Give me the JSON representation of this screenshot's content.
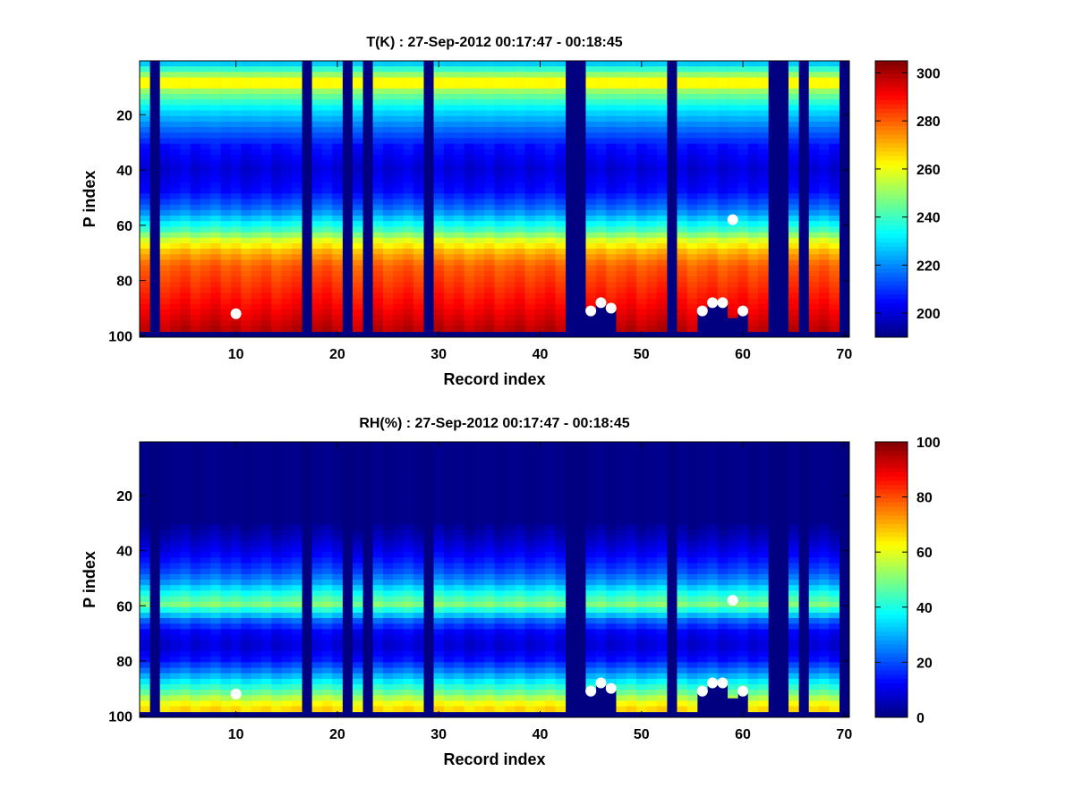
{
  "chart_data": [
    {
      "type": "heatmap",
      "title": "T(K) : 27-Sep-2012 00:17:47 - 00:18:45",
      "xlabel": "Record index",
      "ylabel": "P index",
      "xlim": [
        0.5,
        70.5
      ],
      "ylim": [
        0.5,
        100.5
      ],
      "y_reversed": true,
      "x_ticks": [
        10,
        20,
        30,
        40,
        50,
        60,
        70
      ],
      "y_ticks": [
        20,
        40,
        60,
        80,
        100
      ],
      "colormap": "jet",
      "clim": [
        190,
        305
      ],
      "colorbar_ticks": [
        200,
        220,
        240,
        260,
        280,
        300
      ],
      "missing_records": [
        2,
        17,
        21,
        23,
        29,
        43,
        44,
        53,
        63,
        64,
        66,
        70
      ],
      "profile_mean": [
        {
          "p": 1,
          "v": 222
        },
        {
          "p": 6,
          "v": 250
        },
        {
          "p": 9,
          "v": 268
        },
        {
          "p": 12,
          "v": 250
        },
        {
          "p": 18,
          "v": 232
        },
        {
          "p": 25,
          "v": 218
        },
        {
          "p": 32,
          "v": 206
        },
        {
          "p": 40,
          "v": 200
        },
        {
          "p": 48,
          "v": 205
        },
        {
          "p": 55,
          "v": 218
        },
        {
          "p": 62,
          "v": 240
        },
        {
          "p": 66,
          "v": 258
        },
        {
          "p": 70,
          "v": 270
        },
        {
          "p": 75,
          "v": 280
        },
        {
          "p": 82,
          "v": 285
        },
        {
          "p": 90,
          "v": 291
        },
        {
          "p": 98,
          "v": 298
        }
      ],
      "bottom_p": [
        {
          "record": 45,
          "p": 91
        },
        {
          "record": 46,
          "p": 88
        },
        {
          "record": 47,
          "p": 90
        },
        {
          "record": 48,
          "p": 98
        },
        {
          "record": 49,
          "p": 98
        },
        {
          "record": 50,
          "p": 98
        },
        {
          "record": 51,
          "p": 98
        },
        {
          "record": 52,
          "p": 98
        },
        {
          "record": 56,
          "p": 91
        },
        {
          "record": 57,
          "p": 88
        },
        {
          "record": 58,
          "p": 88
        },
        {
          "record": 59,
          "p": 93
        },
        {
          "record": 60,
          "p": 91
        }
      ],
      "markers": [
        {
          "x": 10,
          "y": 92
        },
        {
          "x": 45,
          "y": 91
        },
        {
          "x": 46,
          "y": 88
        },
        {
          "x": 47,
          "y": 90
        },
        {
          "x": 56,
          "y": 91
        },
        {
          "x": 57,
          "y": 88
        },
        {
          "x": 58,
          "y": 88
        },
        {
          "x": 59,
          "y": 58
        },
        {
          "x": 60,
          "y": 91
        }
      ]
    },
    {
      "type": "heatmap",
      "title": "RH(%) : 27-Sep-2012 00:17:47 - 00:18:45",
      "xlabel": "Record index",
      "ylabel": "P index",
      "xlim": [
        0.5,
        70.5
      ],
      "ylim": [
        0.5,
        100.5
      ],
      "y_reversed": true,
      "x_ticks": [
        10,
        20,
        30,
        40,
        50,
        60,
        70
      ],
      "y_ticks": [
        20,
        40,
        60,
        80,
        100
      ],
      "colormap": "jet",
      "clim": [
        0,
        100
      ],
      "colorbar_ticks": [
        0,
        20,
        40,
        60,
        80,
        100
      ],
      "missing_records": [
        2,
        17,
        21,
        23,
        29,
        43,
        44,
        53,
        63,
        64,
        66,
        70
      ],
      "profile_mean": [
        {
          "p": 1,
          "v": 1
        },
        {
          "p": 30,
          "v": 1
        },
        {
          "p": 36,
          "v": 6
        },
        {
          "p": 42,
          "v": 12
        },
        {
          "p": 48,
          "v": 20
        },
        {
          "p": 52,
          "v": 28
        },
        {
          "p": 56,
          "v": 40
        },
        {
          "p": 60,
          "v": 50
        },
        {
          "p": 63,
          "v": 36
        },
        {
          "p": 66,
          "v": 22
        },
        {
          "p": 70,
          "v": 12
        },
        {
          "p": 75,
          "v": 8
        },
        {
          "p": 80,
          "v": 14
        },
        {
          "p": 84,
          "v": 24
        },
        {
          "p": 88,
          "v": 36
        },
        {
          "p": 92,
          "v": 48
        },
        {
          "p": 96,
          "v": 62
        },
        {
          "p": 98,
          "v": 66
        }
      ],
      "bottom_p": [
        {
          "record": 45,
          "p": 91
        },
        {
          "record": 46,
          "p": 88
        },
        {
          "record": 47,
          "p": 90
        },
        {
          "record": 48,
          "p": 98
        },
        {
          "record": 49,
          "p": 98
        },
        {
          "record": 50,
          "p": 98
        },
        {
          "record": 51,
          "p": 98
        },
        {
          "record": 52,
          "p": 98
        },
        {
          "record": 56,
          "p": 91
        },
        {
          "record": 57,
          "p": 88
        },
        {
          "record": 58,
          "p": 88
        },
        {
          "record": 59,
          "p": 93
        },
        {
          "record": 60,
          "p": 91
        }
      ],
      "markers": [
        {
          "x": 10,
          "y": 92
        },
        {
          "x": 45,
          "y": 91
        },
        {
          "x": 46,
          "y": 88
        },
        {
          "x": 47,
          "y": 90
        },
        {
          "x": 56,
          "y": 91
        },
        {
          "x": 57,
          "y": 88
        },
        {
          "x": 58,
          "y": 88
        },
        {
          "x": 59,
          "y": 58
        },
        {
          "x": 60,
          "y": 91
        }
      ]
    }
  ]
}
